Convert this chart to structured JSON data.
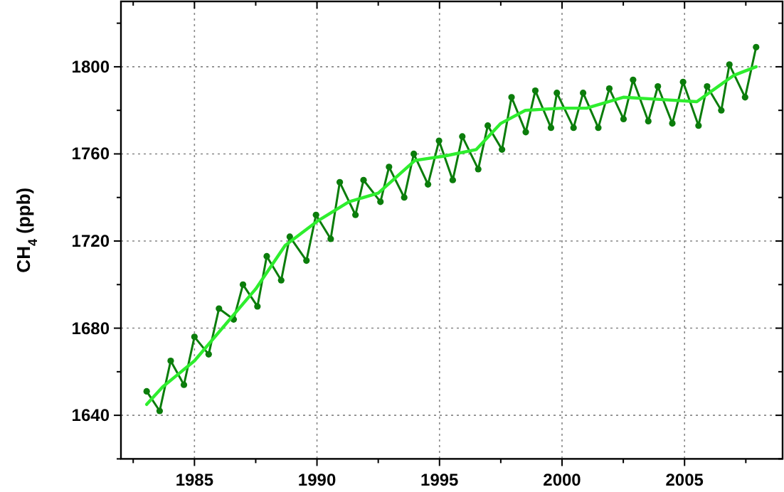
{
  "chart_data": {
    "type": "line",
    "ylabel": "CH$_{4}$ (ppb)",
    "xlim": [
      1982,
      2009
    ],
    "ylim": [
      1620,
      1830
    ],
    "xticks": [
      {
        "value": 1982.5,
        "label": null
      },
      1985,
      {
        "value": 1987.5,
        "label": null
      },
      1990,
      {
        "value": 1992.5,
        "label": null
      },
      1995,
      {
        "value": 1997.5,
        "label": null
      },
      2000,
      {
        "value": 2002.5,
        "label": null
      },
      2005,
      {
        "value": 2007.5,
        "label": null
      }
    ],
    "yticks": [
      {
        "value": 1620,
        "label": null
      },
      1640,
      {
        "value": 1660,
        "label": null
      },
      1680,
      {
        "value": 1700,
        "label": null
      },
      1720,
      {
        "value": 1740,
        "label": null
      },
      1760,
      {
        "value": 1780,
        "label": null
      },
      1800,
      {
        "value": 1820,
        "label": null
      }
    ],
    "grid": true,
    "series": [
      {
        "marker": "circle",
        "line_style": "solid",
        "color": "#0b7d0b",
        "x": [
          1983.05,
          1983.58,
          1984.03,
          1984.57,
          1985.0,
          1985.58,
          1986.0,
          1986.6,
          1986.98,
          1987.57,
          1987.95,
          1988.54,
          1988.89,
          1989.57,
          1989.96,
          1990.56,
          1990.93,
          1991.57,
          1991.9,
          1992.59,
          1992.94,
          1993.56,
          1993.95,
          1994.53,
          1994.98,
          1995.54,
          1995.93,
          1996.58,
          1996.97,
          1997.55,
          1997.94,
          1998.52,
          1998.91,
          1999.55,
          1999.79,
          2000.47,
          2000.86,
          2001.48,
          2001.93,
          2002.51,
          2002.9,
          2003.52,
          2003.91,
          2004.5,
          2004.94,
          2005.57,
          2005.92,
          2006.5,
          2006.83,
          2007.47,
          2007.92
        ],
        "values": [
          1651,
          1642,
          1665,
          1654,
          1676,
          1668,
          1689,
          1684,
          1700,
          1690,
          1713,
          1702,
          1722,
          1711,
          1732,
          1721,
          1747,
          1732,
          1748,
          1738,
          1754,
          1740,
          1760,
          1746,
          1766,
          1748,
          1768,
          1753,
          1773,
          1762,
          1786,
          1770,
          1789,
          1772,
          1788,
          1772,
          1788,
          1772,
          1790,
          1776,
          1794,
          1775,
          1791,
          1774,
          1793,
          1773,
          1791,
          1780,
          1801,
          1786,
          1809
        ]
      },
      {
        "marker": "none",
        "line_style": "solid",
        "color": "#2eee2e",
        "x": [
          1983.05,
          1983.7,
          1985,
          1987.5,
          1988.7,
          1990,
          1991.3,
          1992.5,
          1994,
          1995.2,
          1996.5,
          1997.5,
          1998.5,
          2000,
          2001,
          2002.5,
          2004,
          2005.5,
          2007,
          2007.92
        ],
        "values": [
          1645,
          1653,
          1665,
          1698,
          1718,
          1729,
          1738,
          1742,
          1757,
          1759,
          1762,
          1774,
          1780,
          1781,
          1781,
          1786,
          1785,
          1784,
          1796,
          1800
        ]
      }
    ]
  }
}
